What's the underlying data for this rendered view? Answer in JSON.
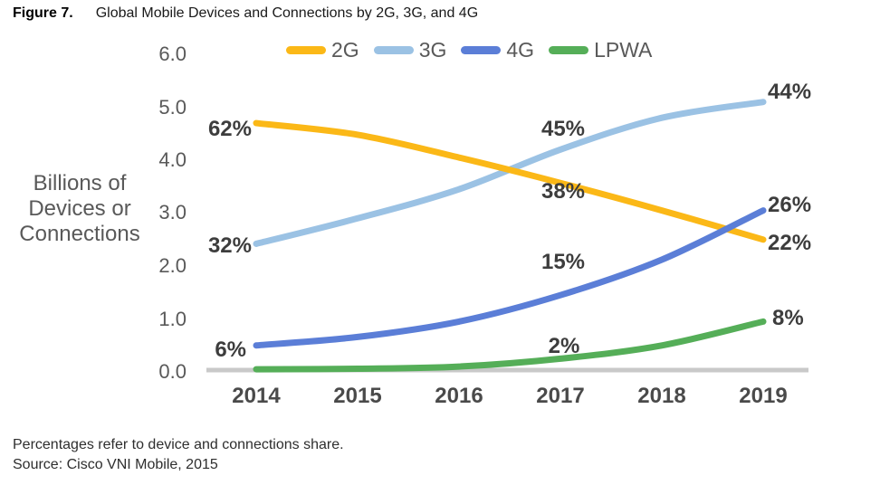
{
  "figure": {
    "label": "Figure 7.",
    "title": "Global Mobile Devices and Connections by 2G, 3G, and 4G"
  },
  "footer": {
    "note": "Percentages refer to device and connections share.",
    "source": "Source: Cisco VNI Mobile, 2015"
  },
  "chart_data": {
    "type": "line",
    "title": "Global Mobile Devices and Connections by 2G, 3G, and 4G",
    "xlabel": "",
    "ylabel": "Billions of\nDevices or\nConnections",
    "categories": [
      2014,
      2015,
      2016,
      2017,
      2018,
      2019
    ],
    "y_ticks": [
      "6.0",
      "5.0",
      "4.0",
      "3.0",
      "2.0",
      "1.0",
      "0.0"
    ],
    "ylim": [
      0,
      6
    ],
    "grid": false,
    "legend_position": "top",
    "baseline_color": "#C9C9C9",
    "series": [
      {
        "id": "2g",
        "name": "2G",
        "color": "#FBB817",
        "values": [
          4.7,
          4.48,
          4.05,
          3.57,
          3.05,
          2.5
        ]
      },
      {
        "id": "3g",
        "name": "3G",
        "color": "#9BC2E4",
        "values": [
          2.42,
          2.9,
          3.45,
          4.2,
          4.8,
          5.1
        ]
      },
      {
        "id": "4g",
        "name": "4G",
        "color": "#5B7ED7",
        "values": [
          0.5,
          0.66,
          0.95,
          1.45,
          2.12,
          3.05
        ]
      },
      {
        "id": "lpwa",
        "name": "LPWA",
        "color": "#55AE58",
        "values": [
          0.05,
          0.06,
          0.1,
          0.25,
          0.5,
          0.95
        ]
      }
    ],
    "annotations": [
      {
        "series": "2G",
        "year": 2014,
        "text": "62%"
      },
      {
        "series": "3G",
        "year": 2014,
        "text": "32%"
      },
      {
        "series": "4G",
        "year": 2014,
        "text": "6%"
      },
      {
        "series": "3G",
        "year": 2017,
        "text": "45%"
      },
      {
        "series": "2G",
        "year": 2017,
        "text": "38%"
      },
      {
        "series": "4G",
        "year": 2017,
        "text": "15%"
      },
      {
        "series": "LPWA",
        "year": 2017,
        "text": "2%"
      },
      {
        "series": "3G",
        "year": 2019,
        "text": "44%"
      },
      {
        "series": "4G",
        "year": 2019,
        "text": "26%"
      },
      {
        "series": "2G",
        "year": 2019,
        "text": "22%"
      },
      {
        "series": "LPWA",
        "year": 2019,
        "text": "8%"
      }
    ]
  }
}
